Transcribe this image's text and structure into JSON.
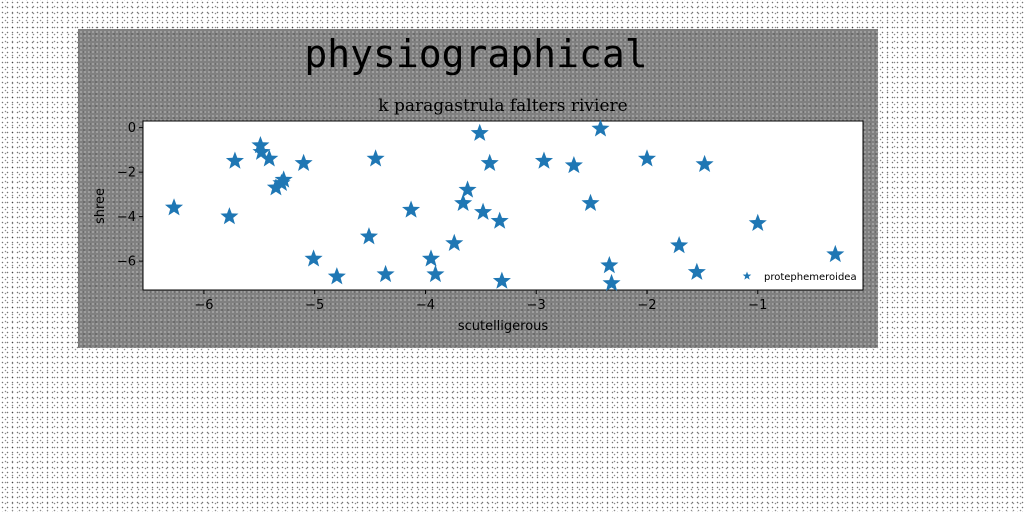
{
  "chart_data": {
    "type": "scatter",
    "title": "physiographical",
    "subtitle": "k paragastrula falters riviere",
    "xlabel": "scutelligerous",
    "ylabel": "shree",
    "xlim": [
      -6.55,
      -0.05
    ],
    "ylim": [
      -7.3,
      0.3
    ],
    "xticks": [
      -6,
      -5,
      -4,
      -3,
      -2,
      -1
    ],
    "yticks": [
      0,
      -2,
      -4,
      -6
    ],
    "grid": false,
    "legend_position": "lower-right",
    "marker": "star",
    "color": "#1f77b4",
    "series": [
      {
        "name": "protephemeroidea",
        "points": [
          {
            "x": -6.27,
            "y": -3.6
          },
          {
            "x": -5.77,
            "y": -4.0
          },
          {
            "x": -5.72,
            "y": -1.5
          },
          {
            "x": -5.49,
            "y": -0.8
          },
          {
            "x": -5.48,
            "y": -1.1
          },
          {
            "x": -5.41,
            "y": -1.4
          },
          {
            "x": -5.35,
            "y": -2.7
          },
          {
            "x": -5.3,
            "y": -2.5
          },
          {
            "x": -5.28,
            "y": -2.35
          },
          {
            "x": -5.1,
            "y": -1.6
          },
          {
            "x": -5.01,
            "y": -5.9
          },
          {
            "x": -4.8,
            "y": -6.7
          },
          {
            "x": -4.51,
            "y": -4.9
          },
          {
            "x": -4.45,
            "y": -1.4
          },
          {
            "x": -4.36,
            "y": -6.6
          },
          {
            "x": -4.13,
            "y": -3.7
          },
          {
            "x": -3.95,
            "y": -5.9
          },
          {
            "x": -3.91,
            "y": -6.6
          },
          {
            "x": -3.74,
            "y": -5.2
          },
          {
            "x": -3.66,
            "y": -3.4
          },
          {
            "x": -3.62,
            "y": -2.8
          },
          {
            "x": -3.51,
            "y": -0.25
          },
          {
            "x": -3.48,
            "y": -3.8
          },
          {
            "x": -3.42,
            "y": -1.6
          },
          {
            "x": -3.33,
            "y": -4.2
          },
          {
            "x": -3.31,
            "y": -6.9
          },
          {
            "x": -2.93,
            "y": -1.5
          },
          {
            "x": -2.66,
            "y": -1.7
          },
          {
            "x": -2.51,
            "y": -3.4
          },
          {
            "x": -2.42,
            "y": -0.05
          },
          {
            "x": -2.34,
            "y": -6.2
          },
          {
            "x": -2.32,
            "y": -7.0
          },
          {
            "x": -2.0,
            "y": -1.4
          },
          {
            "x": -1.71,
            "y": -5.3
          },
          {
            "x": -1.55,
            "y": -6.5
          },
          {
            "x": -1.48,
            "y": -1.65
          },
          {
            "x": -1.0,
            "y": -4.3
          },
          {
            "x": -0.3,
            "y": -5.7
          }
        ]
      }
    ]
  }
}
